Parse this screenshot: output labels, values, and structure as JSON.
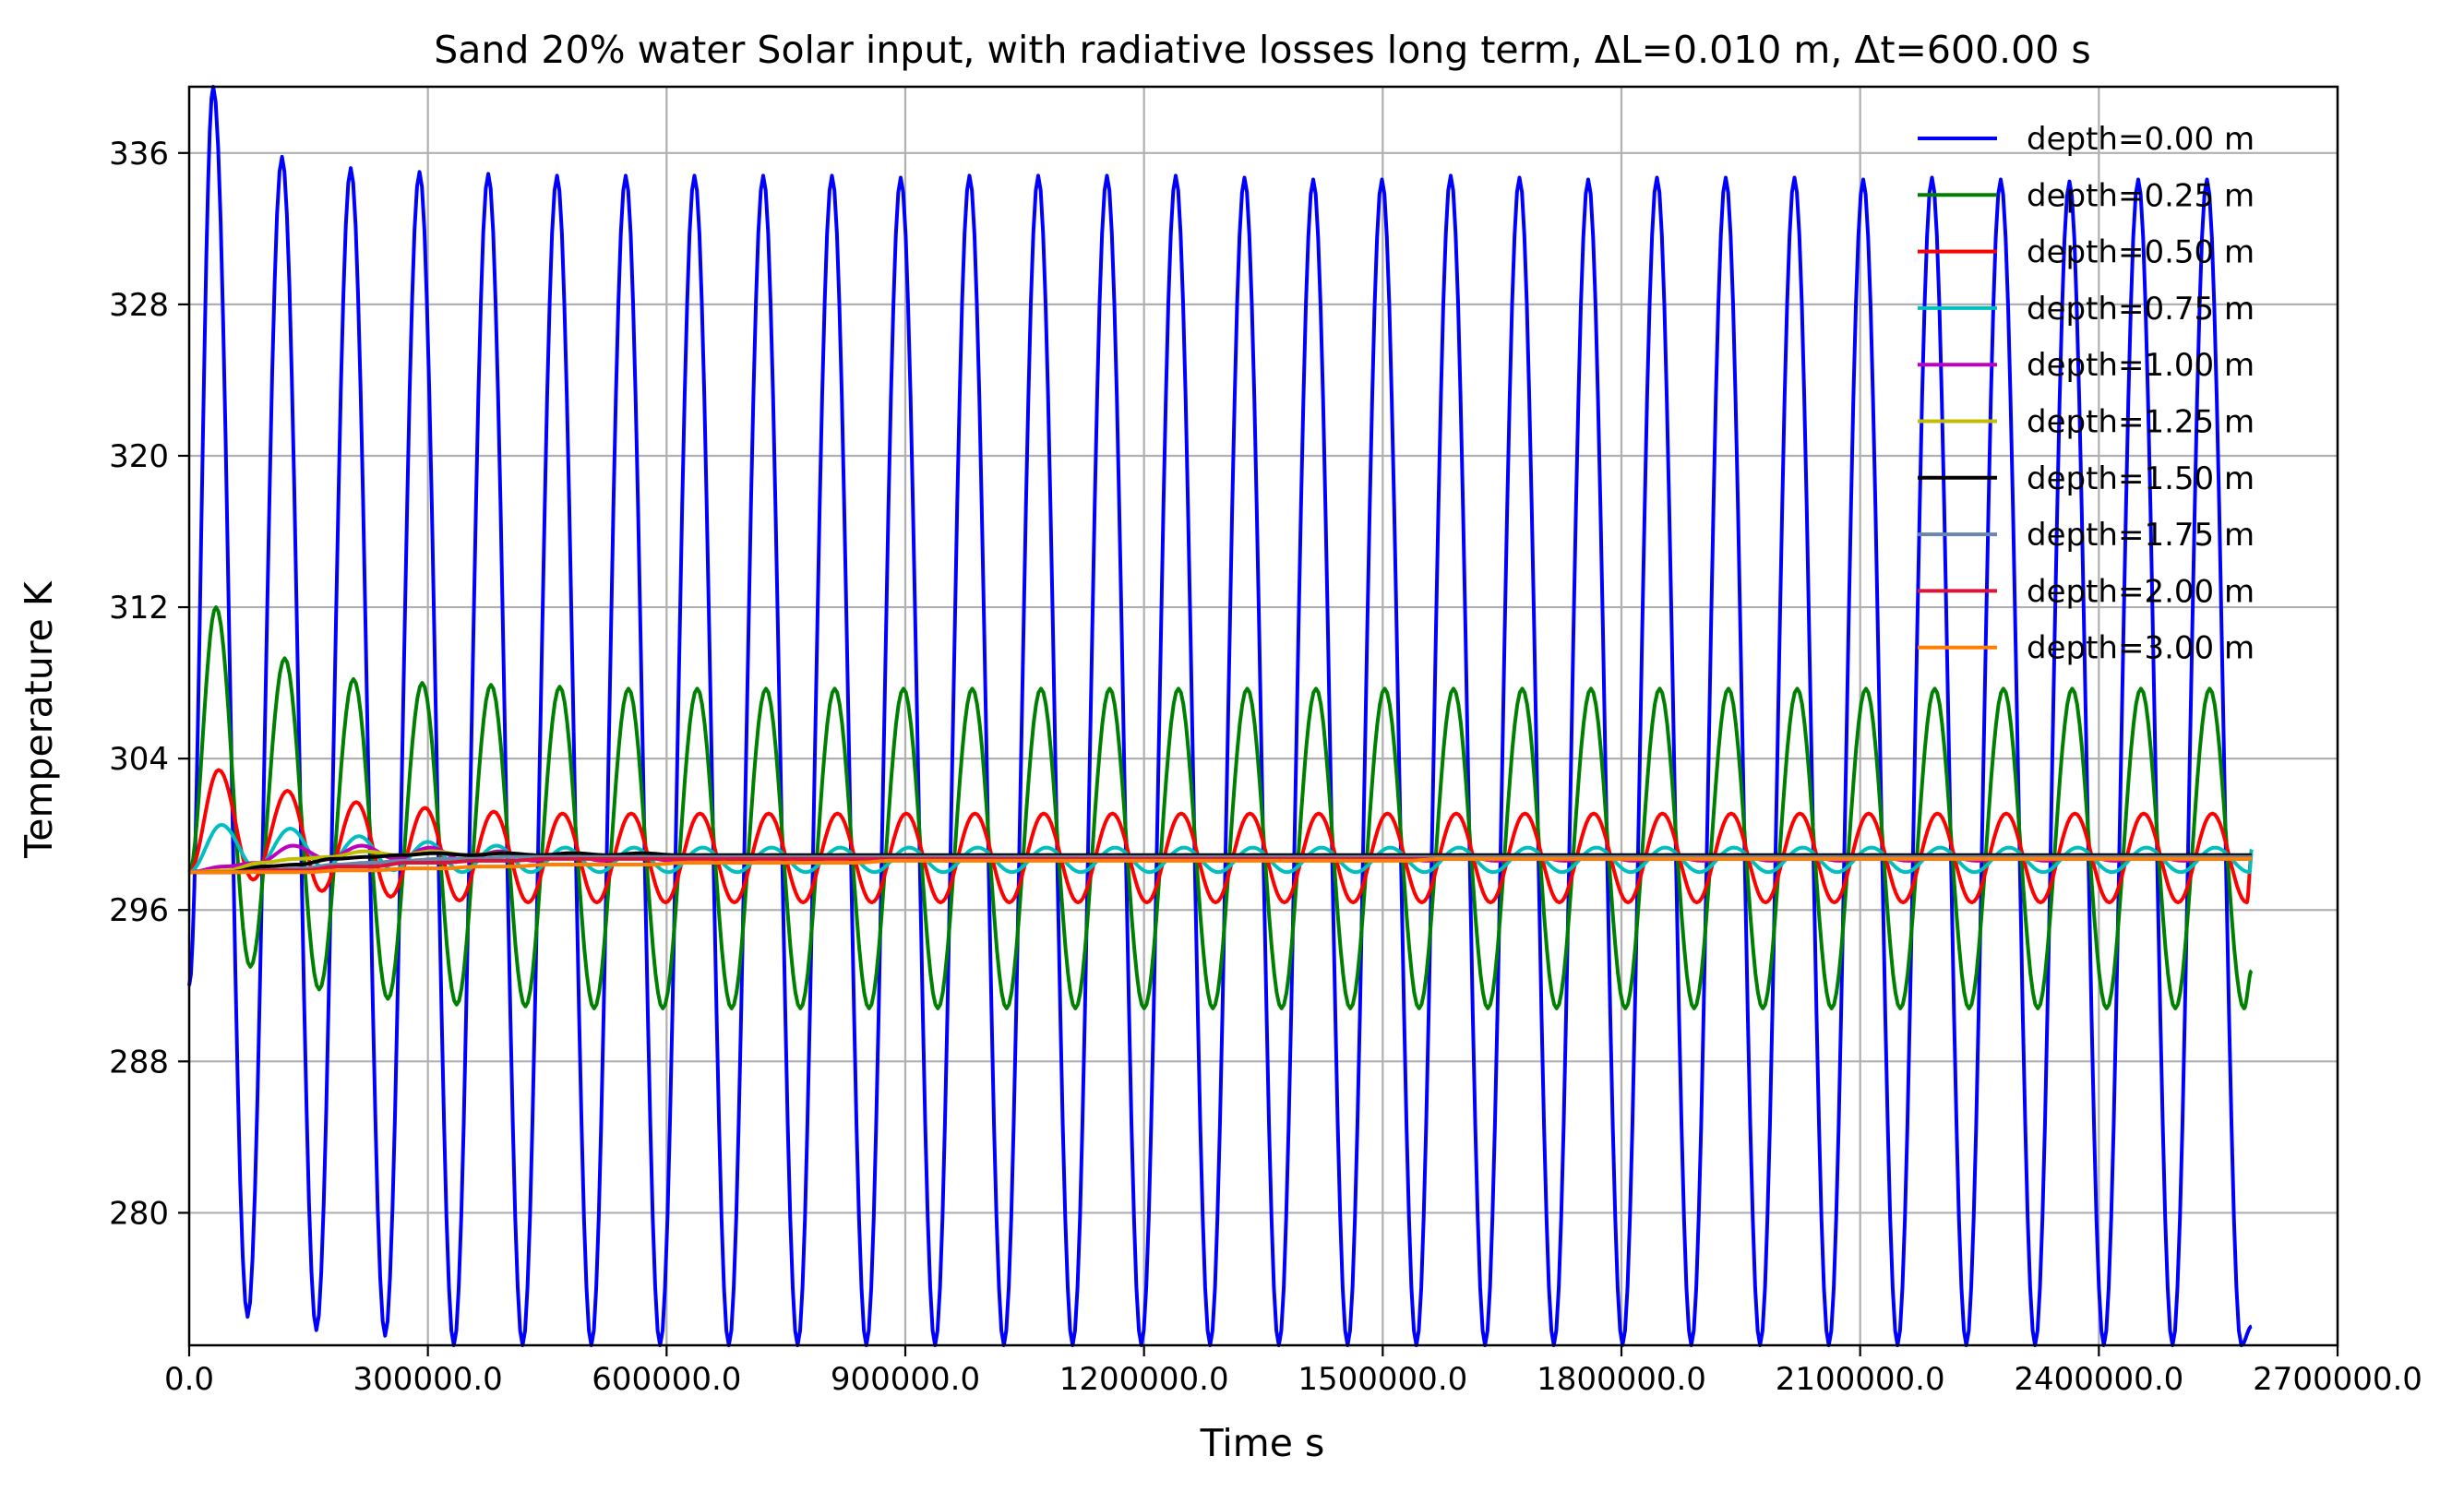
{
  "chart_data": {
    "type": "line",
    "title": "Sand 20% water Solar input, with radiative losses long term,  ΔL=0.010 m, Δt=600.00 s",
    "xlabel": "Time s",
    "ylabel": "Temperature K",
    "xlim": [
      0,
      2700000
    ],
    "ylim": [
      273,
      339.5
    ],
    "xticks": [
      0,
      300000,
      600000,
      900000,
      1200000,
      1500000,
      1800000,
      2100000,
      2400000,
      2700000
    ],
    "xtick_labels": [
      "0.0",
      "300000.0",
      "600000.0",
      "900000.0",
      "1200000.0",
      "1500000.0",
      "1800000.0",
      "2100000.0",
      "2400000.0",
      "2700000.0"
    ],
    "yticks": [
      280,
      288,
      296,
      304,
      312,
      320,
      328,
      336
    ],
    "ytick_labels": [
      "280",
      "288",
      "296",
      "304",
      "312",
      "320",
      "328",
      "336"
    ],
    "grid": true,
    "legend_position": "top-right",
    "period_s": 86400,
    "end_time_s": 2592000,
    "series": [
      {
        "name": "depth=0.00 m",
        "color": "#0000ff",
        "peaks": [
          339.5,
          335.8,
          335.2,
          335.0,
          334.9,
          334.8,
          334.8,
          334.8,
          334.8,
          334.8,
          334.7,
          334.8,
          334.8,
          334.8,
          334.8,
          334.7,
          334.6,
          334.6,
          334.8,
          334.7,
          334.6,
          334.7,
          334.7,
          334.7,
          334.6,
          334.7,
          334.6,
          334.5,
          334.6,
          334.6
        ],
        "troughs": [
          292.0,
          274.5,
          273.8,
          273.5,
          273.0,
          273.0,
          273.0,
          273.0,
          273.0,
          273.0,
          273.0,
          273.0,
          273.0,
          273.0,
          273.0,
          273.0,
          273.0,
          273.0,
          273.0,
          273.0,
          273.0,
          273.0,
          273.0,
          273.0,
          273.0,
          273.0,
          273.0,
          273.0,
          273.0,
          273.0
        ],
        "end": 274.0
      },
      {
        "name": "depth=0.25 m",
        "color": "#008000",
        "peaks": [
          312.0,
          309.3,
          308.2,
          308.0,
          307.9,
          307.8,
          307.7,
          307.7,
          307.7,
          307.7,
          307.7,
          307.7,
          307.7,
          307.7,
          307.7,
          307.7,
          307.7,
          307.7,
          307.7,
          307.7,
          307.7,
          307.7,
          307.7,
          307.7,
          307.7,
          307.7,
          307.7,
          307.7,
          307.7,
          307.7
        ],
        "troughs": [
          298.0,
          293.0,
          291.8,
          291.3,
          291.0,
          290.9,
          290.8,
          290.8,
          290.8,
          290.8,
          290.8,
          290.8,
          290.8,
          290.8,
          290.8,
          290.8,
          290.8,
          290.8,
          290.8,
          290.8,
          290.8,
          290.8,
          290.8,
          290.8,
          290.8,
          290.8,
          290.8,
          290.8,
          290.8,
          290.8
        ],
        "end": 292.8
      },
      {
        "name": "depth=0.50 m",
        "color": "#ff0000",
        "peaks": [
          303.4,
          302.3,
          301.7,
          301.4,
          301.2,
          301.1,
          301.1,
          301.1,
          301.1,
          301.1,
          301.1,
          301.1,
          301.1,
          301.1,
          301.1,
          301.1,
          301.1,
          301.1,
          301.1,
          301.1,
          301.1,
          301.1,
          301.1,
          301.1,
          301.1,
          301.1,
          301.1,
          301.1,
          301.1,
          301.1
        ],
        "troughs": [
          298.0,
          297.6,
          297.0,
          296.7,
          296.5,
          296.4,
          296.4,
          296.4,
          296.4,
          296.4,
          296.4,
          296.4,
          296.4,
          296.4,
          296.4,
          296.4,
          296.4,
          296.4,
          296.4,
          296.4,
          296.4,
          296.4,
          296.4,
          296.4,
          296.4,
          296.4,
          296.4,
          296.4,
          296.4,
          296.4
        ],
        "end": 299.0
      },
      {
        "name": "depth=0.75 m",
        "color": "#00bfbf",
        "peaks": [
          300.5,
          300.3,
          299.9,
          299.6,
          299.4,
          299.3,
          299.3,
          299.3,
          299.3,
          299.3,
          299.3,
          299.3,
          299.3,
          299.3,
          299.3,
          299.3,
          299.3,
          299.3,
          299.3,
          299.3,
          299.3,
          299.3,
          299.3,
          299.3,
          299.3,
          299.3,
          299.3,
          299.3,
          299.3,
          299.3
        ],
        "troughs": [
          298.0,
          298.2,
          298.2,
          298.1,
          298.0,
          298.0,
          298.0,
          298.0,
          298.0,
          298.0,
          298.0,
          298.0,
          298.0,
          298.0,
          298.0,
          298.0,
          298.0,
          298.0,
          298.0,
          298.0,
          298.0,
          298.0,
          298.0,
          298.0,
          298.0,
          298.0,
          298.0,
          298.0,
          298.0,
          298.0
        ],
        "end": 299.2
      },
      {
        "name": "depth=1.00 m",
        "color": "#bf00bf",
        "peaks": [
          298.3,
          299.4,
          299.4,
          299.3,
          299.1,
          299.0,
          298.9,
          298.9,
          298.9,
          298.9,
          298.9,
          298.9,
          298.9,
          298.9,
          298.9,
          298.9,
          298.9,
          298.9,
          298.9,
          298.9,
          298.9,
          298.9,
          298.9,
          298.9,
          298.9,
          298.9,
          298.9,
          298.9,
          298.9,
          298.9
        ],
        "troughs": [
          298.0,
          298.5,
          298.7,
          298.7,
          298.6,
          298.6,
          298.6,
          298.6,
          298.6,
          298.6,
          298.6,
          298.6,
          298.6,
          298.6,
          298.6,
          298.6,
          298.6,
          298.6,
          298.6,
          298.6,
          298.6,
          298.6,
          298.6,
          298.6,
          298.6,
          298.6,
          298.6,
          298.6,
          298.6,
          298.6
        ],
        "end": 298.8
      },
      {
        "name": "depth=1.25 m",
        "color": "#bfbf00",
        "peaks": [
          298.1,
          298.7,
          299.1,
          299.1,
          299.0,
          299.0,
          298.9,
          298.9,
          298.9,
          298.9,
          298.9,
          298.9,
          298.9,
          298.9,
          298.9,
          298.9,
          298.9,
          298.9,
          298.9,
          298.9,
          298.9,
          298.9,
          298.9,
          298.9,
          298.9,
          298.9,
          298.9,
          298.9,
          298.9,
          298.9
        ],
        "troughs": [
          298.0,
          298.5,
          298.8,
          298.9,
          298.9,
          298.8,
          298.8,
          298.8,
          298.8,
          298.8,
          298.8,
          298.8,
          298.8,
          298.8,
          298.8,
          298.8,
          298.8,
          298.8,
          298.8,
          298.8,
          298.8,
          298.8,
          298.8,
          298.8,
          298.8,
          298.8,
          298.8,
          298.8,
          298.8,
          298.8
        ],
        "end": 298.8
      },
      {
        "name": "depth=1.50 m",
        "color": "#000000",
        "peaks": [
          298.0,
          298.4,
          298.8,
          299.0,
          299.0,
          299.0,
          299.0,
          298.9,
          298.9,
          298.9,
          298.9,
          298.9,
          298.9,
          298.9,
          298.9,
          298.9,
          298.9,
          298.9,
          298.9,
          298.9,
          298.9,
          298.9,
          298.9,
          298.9,
          298.9,
          298.9,
          298.9,
          298.9,
          298.9,
          298.9
        ],
        "troughs": [
          298.0,
          298.3,
          298.7,
          298.9,
          298.9,
          298.9,
          298.9,
          298.9,
          298.9,
          298.9,
          298.9,
          298.9,
          298.9,
          298.9,
          298.9,
          298.9,
          298.9,
          298.9,
          298.9,
          298.9,
          298.9,
          298.9,
          298.9,
          298.9,
          298.9,
          298.9,
          298.9,
          298.9,
          298.9,
          298.9
        ],
        "end": 298.9
      },
      {
        "name": "depth=1.75 m",
        "color": "#6688aa",
        "peaks": [
          298.0,
          298.2,
          298.5,
          298.7,
          298.8,
          298.8,
          298.8,
          298.8,
          298.8,
          298.8,
          298.8,
          298.8,
          298.8,
          298.8,
          298.8,
          298.8,
          298.8,
          298.8,
          298.8,
          298.8,
          298.8,
          298.8,
          298.8,
          298.8,
          298.8,
          298.8,
          298.8,
          298.8,
          298.8,
          298.8
        ],
        "troughs": [
          298.0,
          298.1,
          298.4,
          298.6,
          298.7,
          298.8,
          298.8,
          298.8,
          298.8,
          298.8,
          298.8,
          298.8,
          298.8,
          298.8,
          298.8,
          298.8,
          298.8,
          298.8,
          298.8,
          298.8,
          298.8,
          298.8,
          298.8,
          298.8,
          298.8,
          298.8,
          298.8,
          298.8,
          298.8,
          298.8
        ],
        "end": 298.8
      },
      {
        "name": "depth=2.00 m",
        "color": "#dc143c",
        "peaks": [
          298.0,
          298.1,
          298.3,
          298.5,
          298.6,
          298.7,
          298.7,
          298.7,
          298.7,
          298.7,
          298.7,
          298.7,
          298.7,
          298.7,
          298.7,
          298.7,
          298.7,
          298.7,
          298.7,
          298.7,
          298.7,
          298.7,
          298.7,
          298.7,
          298.7,
          298.7,
          298.7,
          298.7,
          298.7,
          298.7
        ],
        "troughs": [
          298.0,
          298.1,
          298.3,
          298.5,
          298.6,
          298.7,
          298.7,
          298.7,
          298.7,
          298.7,
          298.7,
          298.7,
          298.7,
          298.7,
          298.7,
          298.7,
          298.7,
          298.7,
          298.7,
          298.7,
          298.7,
          298.7,
          298.7,
          298.7,
          298.7,
          298.7,
          298.7,
          298.7,
          298.7,
          298.7
        ],
        "end": 298.7
      },
      {
        "name": "depth=3.00 m",
        "color": "#ff8000",
        "peaks": [
          298.0,
          298.0,
          298.1,
          298.2,
          298.3,
          298.4,
          298.4,
          298.5,
          298.5,
          298.5,
          298.6,
          298.6,
          298.6,
          298.6,
          298.6,
          298.6,
          298.6,
          298.6,
          298.7,
          298.7,
          298.7,
          298.7,
          298.7,
          298.7,
          298.7,
          298.7,
          298.7,
          298.7,
          298.7,
          298.7
        ],
        "troughs": [
          298.0,
          298.0,
          298.1,
          298.2,
          298.3,
          298.4,
          298.4,
          298.5,
          298.5,
          298.5,
          298.6,
          298.6,
          298.6,
          298.6,
          298.6,
          298.6,
          298.6,
          298.6,
          298.7,
          298.7,
          298.7,
          298.7,
          298.7,
          298.7,
          298.7,
          298.7,
          298.7,
          298.7,
          298.7,
          298.7
        ],
        "end": 298.7
      }
    ]
  }
}
